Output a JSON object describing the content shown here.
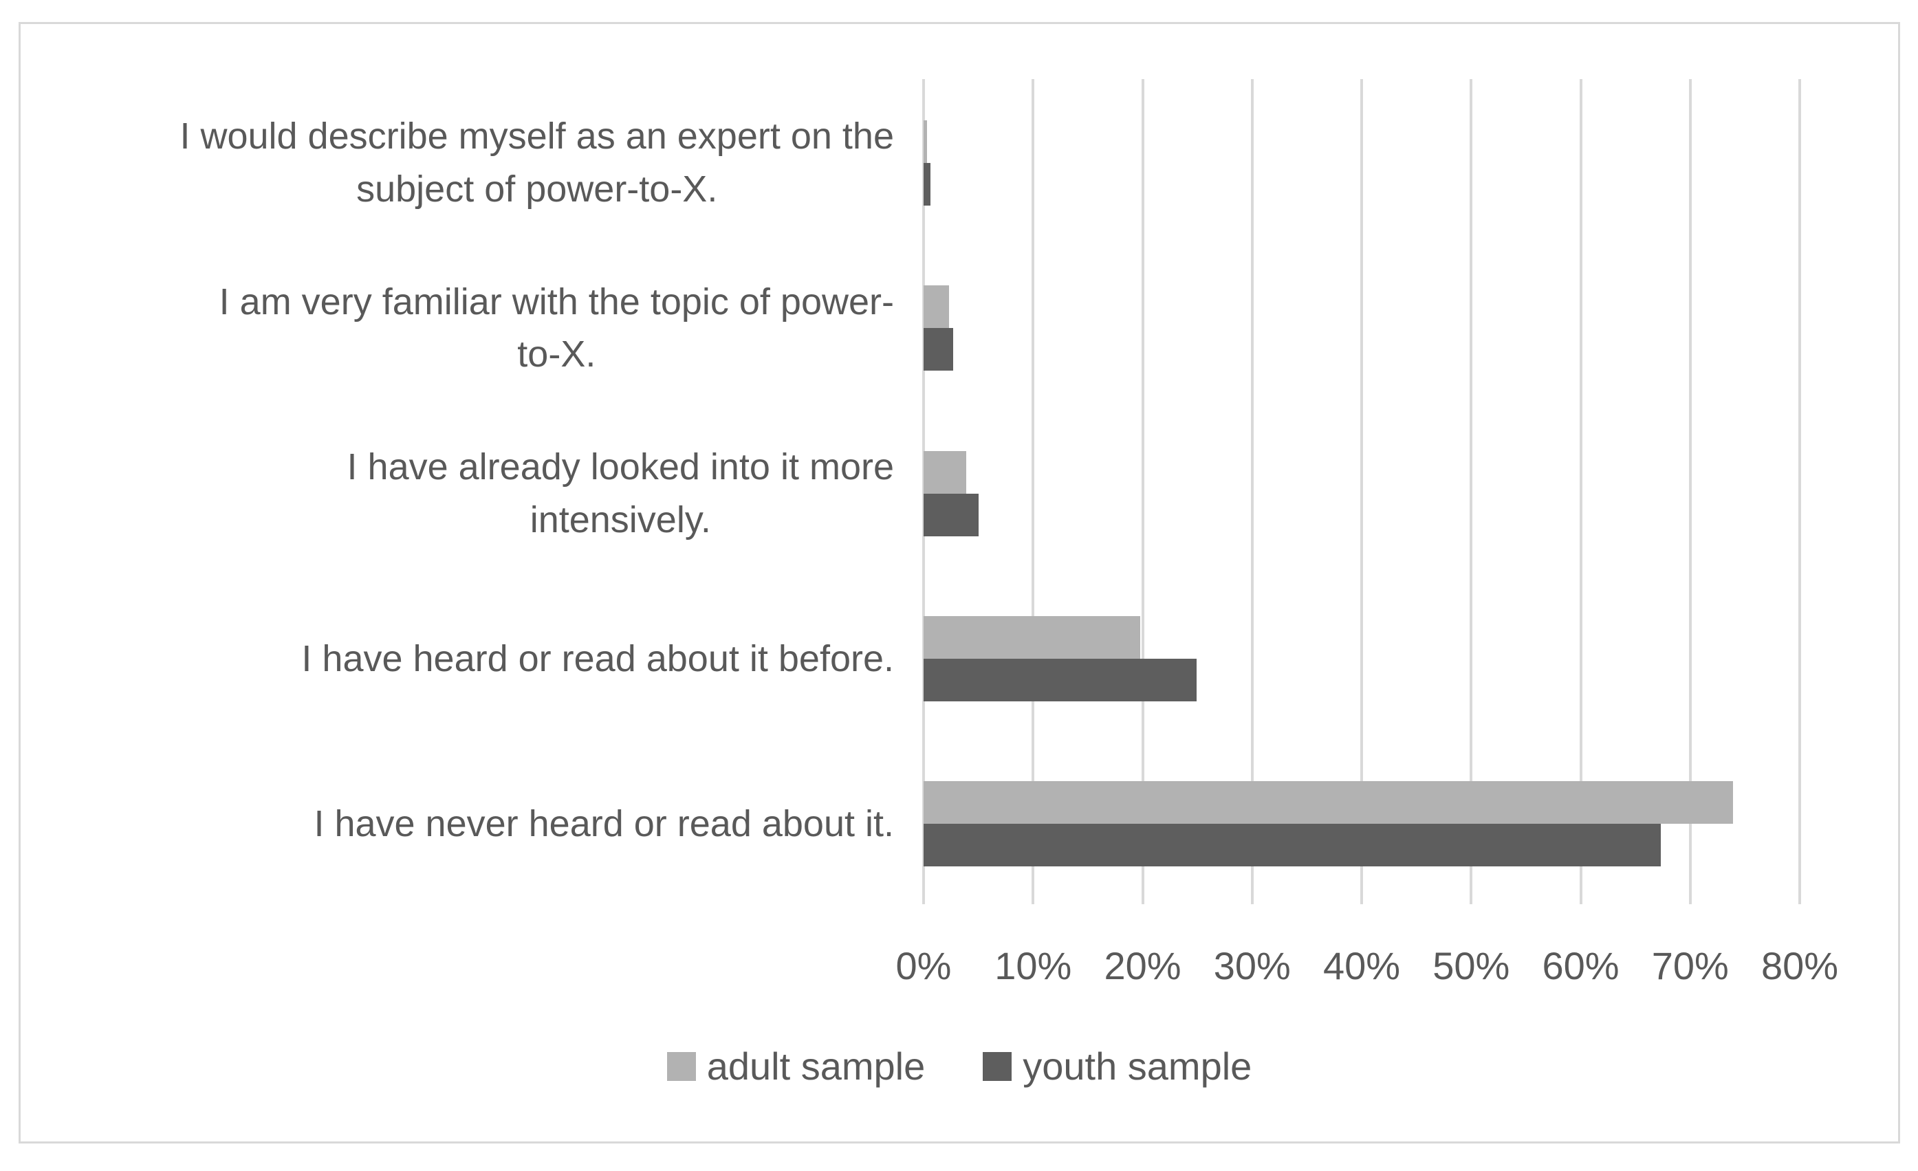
{
  "figure": {
    "background": "#ffffff",
    "border_color": "#d9d9d9"
  },
  "chart_data": {
    "type": "bar",
    "orientation": "horizontal",
    "title": "",
    "xlabel": "",
    "ylabel": "",
    "categories": [
      "I would describe myself as an expert on the\nsubject of power-to-X.",
      "I am very familiar with the topic of power-\nto-X.",
      "I have already looked into it more\nintensively.",
      "I have heard or read about it before.",
      "I have never heard or read about it."
    ],
    "series": [
      {
        "name": "adult sample",
        "color": "#b2b2b2",
        "values": [
          0.3,
          2.3,
          3.9,
          19.8,
          73.9
        ]
      },
      {
        "name": "youth sample",
        "color": "#5e5e5e",
        "values": [
          0.6,
          2.7,
          5.0,
          24.9,
          67.3
        ]
      }
    ],
    "x_ticks": [
      "0%",
      "10%",
      "20%",
      "30%",
      "40%",
      "50%",
      "60%",
      "70%",
      "80%"
    ],
    "x_tick_values": [
      0,
      10,
      20,
      30,
      40,
      50,
      60,
      70,
      80
    ],
    "xlim": [
      0,
      80
    ],
    "grid": true,
    "gridline_color": "#d9d9d9",
    "text_color": "#595959",
    "legend_position": "bottom"
  }
}
